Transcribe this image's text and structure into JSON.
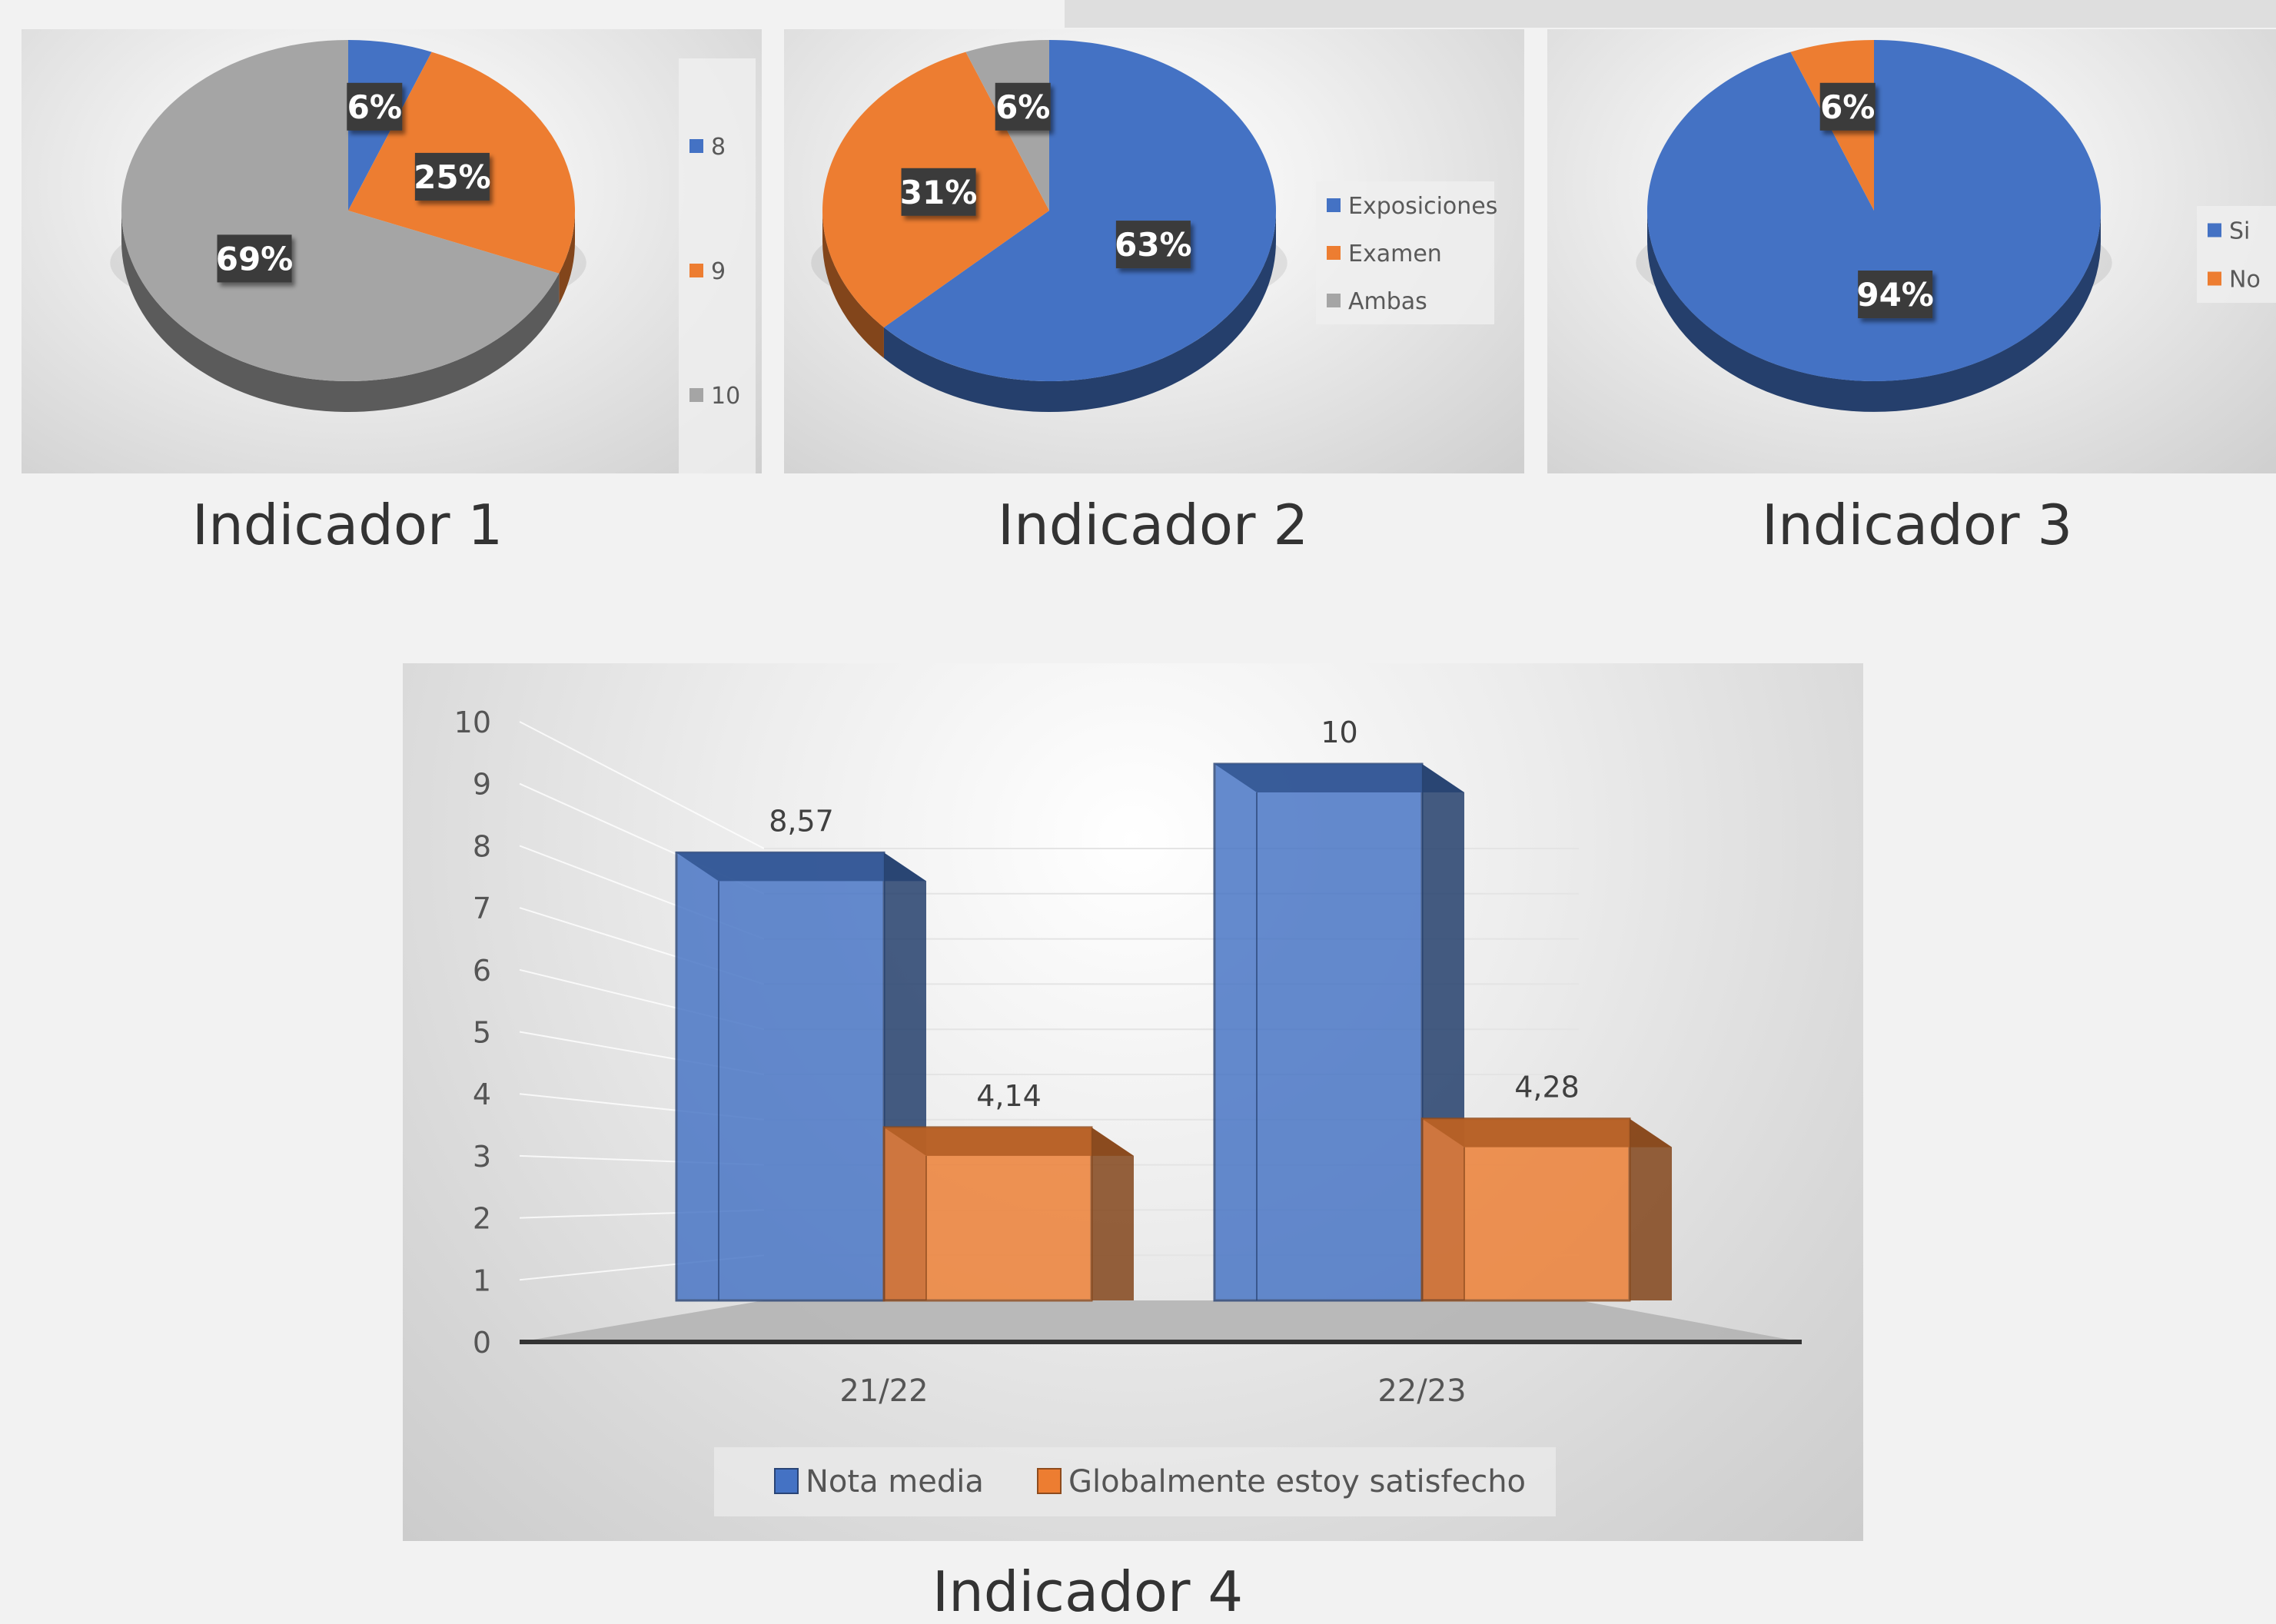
{
  "colors": {
    "blue": "#4472c4",
    "orange": "#ed7d31",
    "gray": "#a5a5a5",
    "label_bg": "#3a3a3a",
    "label_text": "#ffffff"
  },
  "chart_data": [
    {
      "type": "pie",
      "caption": "Indicador 1",
      "slices": [
        {
          "label": "8",
          "value": 6,
          "text": "6%"
        },
        {
          "label": "9",
          "value": 25,
          "text": "25%"
        },
        {
          "label": "10",
          "value": 69,
          "text": "69%"
        }
      ],
      "legend": "right"
    },
    {
      "type": "pie",
      "caption": "Indicador 2",
      "slices": [
        {
          "label": "Exposiciones",
          "value": 63,
          "text": "63%"
        },
        {
          "label": "Examen",
          "value": 31,
          "text": "31%"
        },
        {
          "label": "Ambas",
          "value": 6,
          "text": "6%"
        }
      ],
      "legend": "right"
    },
    {
      "type": "pie",
      "caption": "Indicador 3",
      "slices": [
        {
          "label": "Si",
          "value": 94,
          "text": "94%"
        },
        {
          "label": "No",
          "value": 6,
          "text": "6%"
        }
      ],
      "legend": "right"
    },
    {
      "type": "bar",
      "caption": "Indicador 4",
      "categories": [
        "21/22",
        "22/23"
      ],
      "series": [
        {
          "name": "Nota media",
          "values": [
            8.57,
            10
          ],
          "labels": [
            "8,57",
            "10"
          ]
        },
        {
          "name": "Globalmente estoy satisfecho",
          "values": [
            4.14,
            4.28
          ],
          "labels": [
            "4,14",
            "4,28"
          ]
        }
      ],
      "ylim": [
        0,
        10
      ],
      "yticks": [
        "0",
        "1",
        "2",
        "3",
        "4",
        "5",
        "6",
        "7",
        "8",
        "9",
        "10"
      ],
      "legend": "bottom",
      "grid": true
    }
  ]
}
